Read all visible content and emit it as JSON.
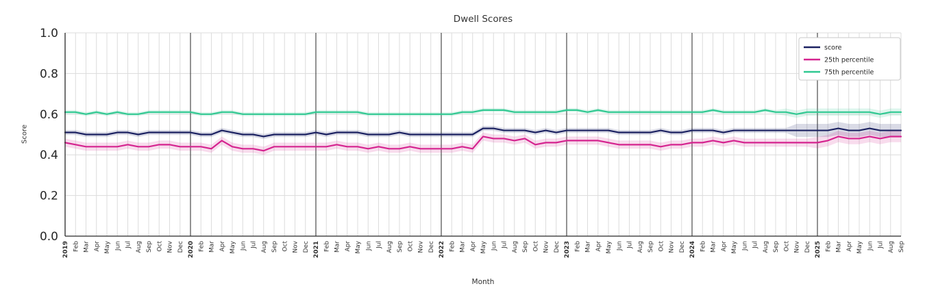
{
  "chart_data": {
    "type": "line",
    "title": "Dwell Scores",
    "xlabel": "Month",
    "ylabel": "Score",
    "ylim": [
      0.0,
      1.0
    ],
    "yticks": [
      0.0,
      0.2,
      0.4,
      0.6,
      0.8,
      1.0
    ],
    "grid": true,
    "legend_position": "upper right",
    "x_labels": [
      "2019",
      "Feb",
      "Mar",
      "Apr",
      "May",
      "Jun",
      "Jul",
      "Aug",
      "Sep",
      "Oct",
      "Nov",
      "Dec",
      "2020",
      "Feb",
      "Mar",
      "Apr",
      "May",
      "Jun",
      "Jul",
      "Aug",
      "Sep",
      "Oct",
      "Nov",
      "Dec",
      "2021",
      "Feb",
      "Mar",
      "Apr",
      "May",
      "Jun",
      "Jul",
      "Aug",
      "Sep",
      "Oct",
      "Nov",
      "Dec",
      "2022",
      "Feb",
      "Mar",
      "Apr",
      "May",
      "Jun",
      "Jul",
      "Aug",
      "Sep",
      "Oct",
      "Nov",
      "Dec",
      "2023",
      "Feb",
      "Mar",
      "Apr",
      "May",
      "Jun",
      "Jul",
      "Aug",
      "Sep",
      "Oct",
      "Nov",
      "Dec",
      "2024",
      "Feb",
      "Mar",
      "Apr",
      "May",
      "Jun",
      "Jul",
      "Aug",
      "Sep",
      "Oct",
      "Nov",
      "Dec",
      "2025",
      "Feb",
      "Mar",
      "Apr",
      "May",
      "Jun",
      "Jul",
      "Aug",
      "Sep"
    ],
    "year_boundaries": [
      12,
      24,
      36,
      48,
      60,
      72
    ],
    "series": [
      {
        "name": "score",
        "color": "#1b2161",
        "band": 0.012,
        "band_wide_from": 70,
        "band_wide": 0.032,
        "values": [
          0.51,
          0.51,
          0.5,
          0.5,
          0.5,
          0.51,
          0.51,
          0.5,
          0.51,
          0.51,
          0.51,
          0.51,
          0.51,
          0.5,
          0.5,
          0.52,
          0.51,
          0.5,
          0.5,
          0.49,
          0.5,
          0.5,
          0.5,
          0.5,
          0.51,
          0.5,
          0.51,
          0.51,
          0.51,
          0.5,
          0.5,
          0.5,
          0.51,
          0.5,
          0.5,
          0.5,
          0.5,
          0.5,
          0.5,
          0.5,
          0.53,
          0.53,
          0.52,
          0.52,
          0.52,
          0.51,
          0.52,
          0.51,
          0.52,
          0.52,
          0.52,
          0.52,
          0.52,
          0.51,
          0.51,
          0.51,
          0.51,
          0.52,
          0.51,
          0.51,
          0.52,
          0.52,
          0.52,
          0.51,
          0.52,
          0.52,
          0.52,
          0.52,
          0.52,
          0.52,
          0.52,
          0.52,
          0.52,
          0.52,
          0.53,
          0.52,
          0.52,
          0.53,
          0.52,
          0.52,
          0.52
        ]
      },
      {
        "name": "25th percentile",
        "color": "#d5238f",
        "band": 0.02,
        "band_wide_from": 72,
        "band_wide": 0.028,
        "values": [
          0.46,
          0.45,
          0.44,
          0.44,
          0.44,
          0.44,
          0.45,
          0.44,
          0.44,
          0.45,
          0.45,
          0.44,
          0.44,
          0.44,
          0.43,
          0.47,
          0.44,
          0.43,
          0.43,
          0.42,
          0.44,
          0.44,
          0.44,
          0.44,
          0.44,
          0.44,
          0.45,
          0.44,
          0.44,
          0.43,
          0.44,
          0.43,
          0.43,
          0.44,
          0.43,
          0.43,
          0.43,
          0.43,
          0.44,
          0.43,
          0.49,
          0.48,
          0.48,
          0.47,
          0.48,
          0.45,
          0.46,
          0.46,
          0.47,
          0.47,
          0.47,
          0.47,
          0.46,
          0.45,
          0.45,
          0.45,
          0.45,
          0.44,
          0.45,
          0.45,
          0.46,
          0.46,
          0.47,
          0.46,
          0.47,
          0.46,
          0.46,
          0.46,
          0.46,
          0.46,
          0.46,
          0.46,
          0.46,
          0.47,
          0.49,
          0.48,
          0.48,
          0.49,
          0.48,
          0.49,
          0.49
        ]
      },
      {
        "name": "75th percentile",
        "color": "#2fc891",
        "band": 0.01,
        "band_wide_from": 69,
        "band_wide": 0.018,
        "values": [
          0.61,
          0.61,
          0.6,
          0.61,
          0.6,
          0.61,
          0.6,
          0.6,
          0.61,
          0.61,
          0.61,
          0.61,
          0.61,
          0.6,
          0.6,
          0.61,
          0.61,
          0.6,
          0.6,
          0.6,
          0.6,
          0.6,
          0.6,
          0.6,
          0.61,
          0.61,
          0.61,
          0.61,
          0.61,
          0.6,
          0.6,
          0.6,
          0.6,
          0.6,
          0.6,
          0.6,
          0.6,
          0.6,
          0.61,
          0.61,
          0.62,
          0.62,
          0.62,
          0.61,
          0.61,
          0.61,
          0.61,
          0.61,
          0.62,
          0.62,
          0.61,
          0.62,
          0.61,
          0.61,
          0.61,
          0.61,
          0.61,
          0.61,
          0.61,
          0.61,
          0.61,
          0.61,
          0.62,
          0.61,
          0.61,
          0.61,
          0.61,
          0.62,
          0.61,
          0.61,
          0.6,
          0.61,
          0.61,
          0.61,
          0.61,
          0.61,
          0.61,
          0.61,
          0.6,
          0.61,
          0.61
        ]
      }
    ],
    "colors": {
      "grid": "#dcdcdc",
      "year_line": "#3a3a3a",
      "spine": "#262626",
      "tick_label": "#262626",
      "text": "#333333",
      "legend_border": "#c9c9c9"
    }
  }
}
